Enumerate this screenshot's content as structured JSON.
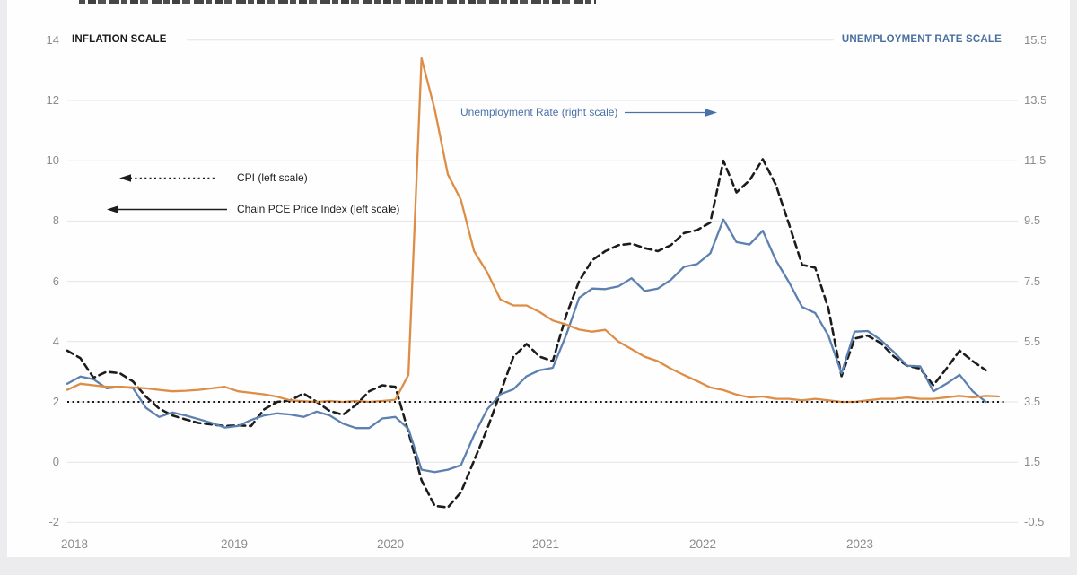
{
  "labels": {
    "left_axis_title": "INFLATION SCALE",
    "right_axis_title": "UNEMPLOYMENT RATE SCALE",
    "cpi_legend": "CPI (left scale)",
    "pce_legend": "Chain PCE Price Index (left scale)",
    "unemployment_annotation": "Unemployment Rate (right scale)"
  },
  "colors": {
    "cpi_line": "#1c1c1c",
    "pce_line": "#5c80b0",
    "unemployment_line": "#dd8d45",
    "reference_dotted_line": "#161616",
    "gridline": "#e4e4e4",
    "tick_text": "#8c8c8c",
    "blue_label_text": "#4a6fa0"
  },
  "chart_data": {
    "type": "line",
    "frequency": "monthly",
    "x_range": "Jan 2018 - Dec 2023",
    "x_tick_labels": [
      "2018",
      "2019",
      "2020",
      "2021",
      "2022",
      "2023"
    ],
    "grid": "horizontal only",
    "left_axis": {
      "title": "INFLATION SCALE",
      "ticks": [
        14,
        12,
        10,
        8,
        6,
        4,
        2,
        0,
        -2
      ],
      "range": [
        -2,
        14
      ]
    },
    "right_axis": {
      "title": "UNEMPLOYMENT RATE SCALE",
      "ticks": [
        15.5,
        13.5,
        11.5,
        9.5,
        7.5,
        5.5,
        3.5,
        1.5,
        -0.5
      ],
      "range": [
        -0.5,
        15.5
      ]
    },
    "series": [
      {
        "name": "CPI (left scale)",
        "axis": "left",
        "style": "dashed",
        "color": "#1c1c1c",
        "values": [
          3.7,
          3.45,
          2.8,
          3.0,
          2.95,
          2.68,
          2.17,
          1.78,
          1.55,
          1.42,
          1.3,
          1.25,
          1.2,
          1.22,
          1.2,
          1.75,
          2.0,
          2.05,
          2.28,
          2.0,
          1.7,
          1.57,
          1.9,
          2.35,
          2.55,
          2.5,
          1.0,
          -0.6,
          -1.45,
          -1.5,
          -1.0,
          0.05,
          1.1,
          2.3,
          3.5,
          3.92,
          3.5,
          3.35,
          4.85,
          6.0,
          6.7,
          7.0,
          7.2,
          7.25,
          7.1,
          7.0,
          7.2,
          7.6,
          7.7,
          7.95,
          10.0,
          8.95,
          9.35,
          10.05,
          9.2,
          7.9,
          6.55,
          6.45,
          5.1,
          2.85,
          4.1,
          4.2,
          3.95,
          3.5,
          3.2,
          3.1,
          2.55,
          3.1,
          3.7,
          3.35,
          3.05,
          null
        ]
      },
      {
        "name": "Chain PCE Price Index (left scale)",
        "axis": "left",
        "style": "solid",
        "color": "#5c80b0",
        "values": [
          2.6,
          2.84,
          2.75,
          2.45,
          2.5,
          2.46,
          1.8,
          1.5,
          1.65,
          1.55,
          1.43,
          1.3,
          1.15,
          1.2,
          1.4,
          1.55,
          1.62,
          1.58,
          1.5,
          1.68,
          1.55,
          1.28,
          1.13,
          1.13,
          1.45,
          1.5,
          1.1,
          -0.25,
          -0.33,
          -0.25,
          -0.1,
          0.9,
          1.75,
          2.25,
          2.42,
          2.85,
          3.05,
          3.13,
          4.2,
          5.45,
          5.76,
          5.74,
          5.83,
          6.1,
          5.68,
          5.76,
          6.05,
          6.48,
          6.57,
          6.93,
          8.05,
          7.3,
          7.22,
          7.68,
          6.7,
          5.97,
          5.15,
          4.95,
          4.2,
          2.95,
          4.33,
          4.35,
          4.05,
          3.65,
          3.2,
          3.18,
          2.35,
          2.6,
          2.9,
          2.35,
          2.0,
          null
        ]
      },
      {
        "name": "Unemployment Rate (right scale)",
        "axis": "right",
        "style": "solid",
        "color": "#dd8d45",
        "values": [
          3.9,
          4.1,
          4.05,
          4.0,
          4.0,
          3.98,
          3.95,
          3.9,
          3.85,
          3.87,
          3.9,
          3.95,
          4.0,
          3.85,
          3.8,
          3.75,
          3.67,
          3.55,
          3.52,
          3.5,
          3.53,
          3.5,
          3.53,
          3.5,
          3.53,
          3.57,
          4.4,
          14.9,
          13.2,
          11.05,
          10.2,
          8.5,
          7.8,
          6.9,
          6.7,
          6.7,
          6.48,
          6.2,
          6.07,
          5.9,
          5.83,
          5.89,
          5.5,
          5.25,
          5.0,
          4.85,
          4.6,
          4.39,
          4.19,
          3.98,
          3.89,
          3.74,
          3.65,
          3.68,
          3.6,
          3.6,
          3.55,
          3.6,
          3.55,
          3.5,
          3.5,
          3.55,
          3.6,
          3.6,
          3.65,
          3.6,
          3.6,
          3.65,
          3.7,
          3.65,
          3.7,
          3.68
        ]
      },
      {
        "name": "2 percent reference line",
        "axis": "left",
        "style": "dotted",
        "color": "#161616",
        "constant": 2.0
      }
    ]
  }
}
